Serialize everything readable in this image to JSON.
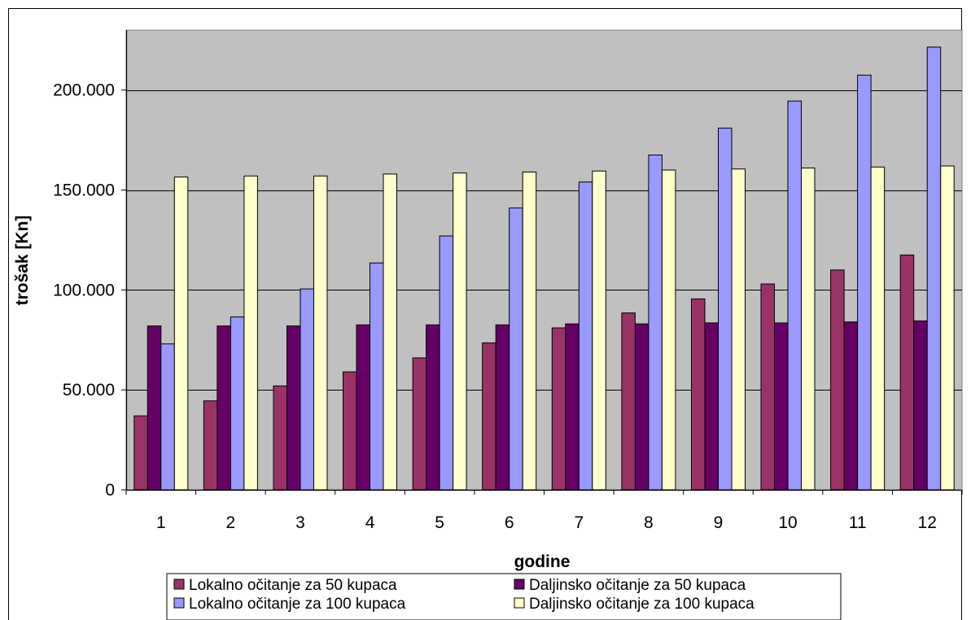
{
  "chart_data": {
    "type": "bar",
    "title": "",
    "xlabel": "godine",
    "ylabel": "trošak [Kn]",
    "categories": [
      "1",
      "2",
      "3",
      "4",
      "5",
      "6",
      "7",
      "8",
      "9",
      "10",
      "11",
      "12"
    ],
    "ylim": [
      0,
      230000
    ],
    "yticks": [
      0,
      50000,
      100000,
      150000,
      200000
    ],
    "ytick_labels": [
      "0",
      "50.000",
      "100.000",
      "150.000",
      "200.000"
    ],
    "grid": true,
    "plot_background": "#c0c0c0",
    "legend_position": "bottom",
    "series": [
      {
        "name": "Lokalno očitanje za 50 kupaca",
        "color": "#993366",
        "values": [
          37000,
          44500,
          52000,
          59000,
          66000,
          73500,
          81000,
          88500,
          95500,
          103000,
          110000,
          117500
        ]
      },
      {
        "name": "Daljinsko očitanje za 50 kupaca",
        "color": "#660066",
        "values": [
          82000,
          82000,
          82000,
          82500,
          82500,
          82500,
          83000,
          83000,
          83500,
          83500,
          84000,
          84500
        ]
      },
      {
        "name": "Lokalno očitanje za 100 kupaca",
        "color": "#9999ff",
        "values": [
          73000,
          86500,
          100500,
          113500,
          127000,
          141000,
          154000,
          167500,
          181000,
          194500,
          207500,
          221500
        ]
      },
      {
        "name": "Daljinsko očitanje za 100 kupaca",
        "color": "#ffffcc",
        "values": [
          156500,
          157000,
          157000,
          158000,
          158500,
          159000,
          159500,
          160000,
          160500,
          161000,
          161500,
          162000
        ]
      }
    ]
  }
}
